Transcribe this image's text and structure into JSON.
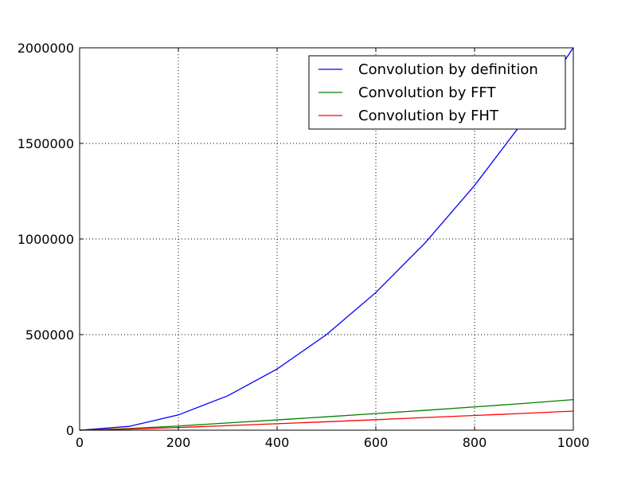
{
  "chart_data": {
    "type": "line",
    "title": "",
    "xlabel": "",
    "ylabel": "",
    "xlim": [
      0,
      1000
    ],
    "ylim": [
      0,
      2000000
    ],
    "xticks": [
      0,
      200,
      400,
      600,
      800,
      1000
    ],
    "yticks": [
      0,
      500000,
      1000000,
      1500000,
      2000000
    ],
    "xtick_labels": [
      "0",
      "200",
      "400",
      "600",
      "800",
      "1000"
    ],
    "ytick_labels": [
      "0",
      "500000",
      "1000000",
      "1500000",
      "2000000"
    ],
    "grid": true,
    "legend_position": "top-right",
    "series": [
      {
        "name": "Convolution by definition",
        "color": "#0000ff",
        "x": [
          0,
          100,
          200,
          300,
          400,
          500,
          600,
          700,
          800,
          900,
          1000
        ],
        "y": [
          0,
          20000,
          80000,
          180000,
          320000,
          500000,
          720000,
          980000,
          1280000,
          1620000,
          2000000
        ]
      },
      {
        "name": "Convolution by FFT",
        "color": "#008000",
        "x": [
          0,
          100,
          200,
          300,
          400,
          500,
          600,
          700,
          800,
          900,
          1000
        ],
        "y": [
          0,
          9000,
          22000,
          38000,
          54000,
          70000,
          87000,
          104000,
          122000,
          140000,
          160000
        ]
      },
      {
        "name": "Convolution by FHT",
        "color": "#ff0000",
        "x": [
          0,
          100,
          200,
          300,
          400,
          500,
          600,
          700,
          800,
          900,
          1000
        ],
        "y": [
          0,
          6000,
          14000,
          24000,
          34000,
          44000,
          55000,
          66000,
          77000,
          88000,
          100000
        ]
      }
    ]
  }
}
